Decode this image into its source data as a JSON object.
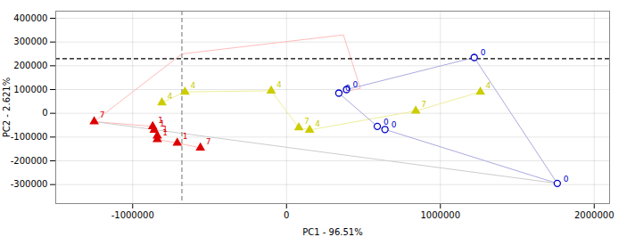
{
  "chart_data": {
    "type": "scatter",
    "xlabel": "PC1 - 96.51%",
    "ylabel": "PC2 - 2.621%",
    "xlim": [
      -1500000,
      2100000
    ],
    "ylim": [
      -380000,
      430000
    ],
    "xticks": [
      -1000000,
      0,
      1000000,
      2000000
    ],
    "yticks": [
      -300000,
      -200000,
      -100000,
      0,
      100000,
      200000,
      300000,
      400000
    ],
    "grid": true,
    "lines": [
      {
        "color": "#ffbbbb",
        "x": [
          -1250000,
          -680000,
          370000,
          480000,
          340000
        ],
        "y": [
          -35000,
          250000,
          330000,
          105000,
          85000
        ]
      },
      {
        "color": "#ffbbbb",
        "x": [
          -1250000,
          -870000,
          -860000,
          -840000,
          -840000,
          -710000,
          -560000
        ],
        "y": [
          -35000,
          -55000,
          -70000,
          -95000,
          -110000,
          -125000,
          -145000
        ]
      },
      {
        "color": "#eeee99",
        "x": [
          -810000,
          -660000,
          -100000,
          80000,
          150000,
          840000,
          1260000
        ],
        "y": [
          45000,
          90000,
          95000,
          -60000,
          -70000,
          10000,
          90000
        ]
      },
      {
        "color": "#aaaadd",
        "x": [
          340000,
          390000,
          1220000,
          1760000,
          640000,
          590000,
          340000
        ],
        "y": [
          85000,
          100000,
          235000,
          -295000,
          -68000,
          -55000,
          85000
        ]
      },
      {
        "color": "#cccccc",
        "x": [
          -1250000,
          1760000
        ],
        "y": [
          -35000,
          -295000
        ]
      }
    ],
    "hlines": [
      {
        "y": 230000,
        "color": "#000000",
        "line_style": "dashed"
      }
    ],
    "vlines": [
      {
        "x": -680000,
        "color": "#888888",
        "line_style": "dashed"
      }
    ],
    "series": [
      {
        "color": "#dd0000",
        "marker": "triangle",
        "x": [
          -1250000,
          -870000,
          -860000,
          -840000,
          -840000,
          -710000,
          -560000
        ],
        "y": [
          -35000,
          -55000,
          -70000,
          -95000,
          -110000,
          -125000,
          -145000
        ],
        "labels": [
          "7",
          "1",
          "1",
          "1",
          "1",
          "1",
          "7"
        ]
      },
      {
        "color": "#cccc00",
        "marker": "triangle",
        "x": [
          -810000,
          -660000,
          -100000,
          80000,
          150000,
          840000,
          1260000
        ],
        "y": [
          45000,
          90000,
          95000,
          -60000,
          -70000,
          10000,
          90000
        ],
        "labels": [
          "4",
          "4",
          "4",
          "7",
          "4",
          "7",
          "4"
        ]
      },
      {
        "color": "#0000cc",
        "marker": "hollow_circle",
        "x": [
          340000,
          390000,
          590000,
          640000,
          1220000,
          1760000
        ],
        "y": [
          85000,
          100000,
          -55000,
          -68000,
          235000,
          -295000
        ],
        "labels": [
          "0",
          "0",
          "0",
          "0",
          "0",
          "0"
        ]
      }
    ]
  }
}
